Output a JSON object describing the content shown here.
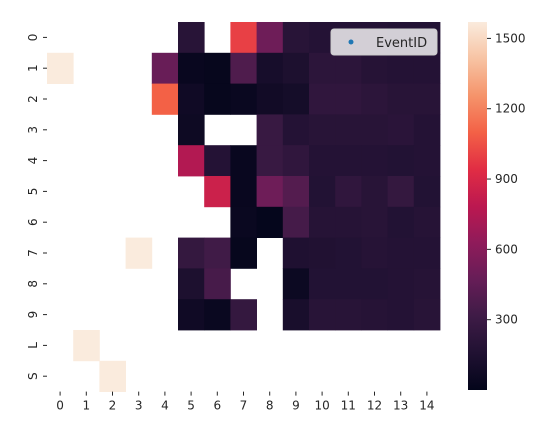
{
  "chart_data": {
    "type": "heatmap",
    "x_tick_labels": [
      "0",
      "1",
      "2",
      "3",
      "4",
      "5",
      "6",
      "7",
      "8",
      "9",
      "10",
      "11",
      "12",
      "13",
      "14"
    ],
    "y_tick_labels": [
      "0",
      "1",
      "2",
      "3",
      "4",
      "5",
      "6",
      "7",
      "8",
      "9",
      "L",
      "S"
    ],
    "values": [
      [
        null,
        null,
        null,
        null,
        null,
        200,
        null,
        1000,
        500,
        200,
        180,
        180,
        180,
        170,
        170
      ],
      [
        1570,
        null,
        null,
        null,
        480,
        30,
        20,
        380,
        110,
        140,
        220,
        220,
        190,
        180,
        180
      ],
      [
        null,
        null,
        null,
        null,
        1100,
        70,
        20,
        40,
        80,
        100,
        240,
        240,
        220,
        200,
        200
      ],
      [
        null,
        null,
        null,
        null,
        null,
        60,
        null,
        null,
        280,
        180,
        200,
        200,
        200,
        210,
        180
      ],
      [
        null,
        null,
        null,
        null,
        null,
        750,
        180,
        30,
        280,
        240,
        180,
        180,
        180,
        170,
        180
      ],
      [
        null,
        null,
        null,
        null,
        null,
        null,
        850,
        30,
        500,
        400,
        170,
        240,
        200,
        260,
        170
      ],
      [
        null,
        null,
        null,
        null,
        null,
        null,
        null,
        40,
        10,
        340,
        190,
        190,
        200,
        170,
        190
      ],
      [
        null,
        null,
        null,
        1570,
        null,
        260,
        320,
        20,
        null,
        150,
        160,
        170,
        190,
        180,
        180
      ],
      [
        null,
        null,
        null,
        null,
        null,
        140,
        350,
        null,
        null,
        50,
        170,
        170,
        170,
        180,
        190
      ],
      [
        null,
        null,
        null,
        null,
        null,
        70,
        40,
        260,
        null,
        120,
        200,
        200,
        190,
        180,
        200
      ],
      [
        null,
        1570,
        null,
        null,
        null,
        null,
        null,
        null,
        null,
        null,
        null,
        null,
        null,
        null,
        null
      ],
      [
        null,
        null,
        1570,
        null,
        null,
        null,
        null,
        null,
        null,
        null,
        null,
        null,
        null,
        null,
        null
      ]
    ],
    "color_range": [
      0,
      1570
    ],
    "colorbar_ticks": [
      "300",
      "600",
      "900",
      "1200",
      "1500"
    ],
    "colorbar_tick_values": [
      300,
      600,
      900,
      1200,
      1500
    ],
    "colormap": "rocket",
    "legend": {
      "label": "EventID",
      "marker_color": "#1f77b4",
      "placement": "upper right"
    },
    "grid": false
  }
}
